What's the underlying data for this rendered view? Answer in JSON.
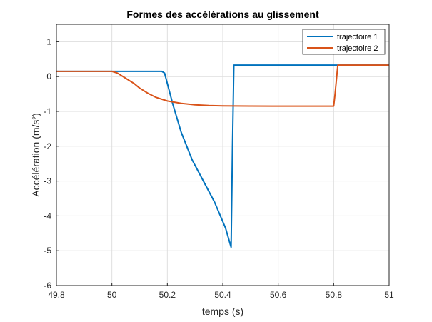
{
  "chart_data": {
    "type": "line",
    "title": "Formes des accélérations au glissement",
    "xlabel": "temps (s)",
    "ylabel": "Accélération (m/s²)",
    "xlim": [
      49.8,
      51
    ],
    "ylim": [
      -6,
      1.5
    ],
    "xticks": [
      49.8,
      50,
      50.2,
      50.4,
      50.6,
      50.8,
      51
    ],
    "xtick_labels": [
      "49.8",
      "50",
      "50.2",
      "50.4",
      "50.6",
      "50.8",
      "51"
    ],
    "yticks": [
      -6,
      -5,
      -4,
      -3,
      -2,
      -1,
      0,
      1
    ],
    "ytick_labels": [
      "-6",
      "-5",
      "-4",
      "-3",
      "-2",
      "-1",
      "0",
      "1"
    ],
    "grid": true,
    "legend_position": "top-right",
    "series": [
      {
        "name": "trajectoire 1",
        "color": "#0072BD",
        "x": [
          49.8,
          50.18,
          50.19,
          50.2,
          50.22,
          50.25,
          50.29,
          50.33,
          50.37,
          50.41,
          50.43,
          50.435,
          50.44,
          51.0
        ],
        "y": [
          0.15,
          0.15,
          0.1,
          -0.2,
          -0.8,
          -1.6,
          -2.4,
          -3.0,
          -3.6,
          -4.35,
          -4.9,
          -2.0,
          0.33,
          0.33
        ]
      },
      {
        "name": "trajectoire 2",
        "color": "#D95319",
        "x": [
          49.8,
          50.0,
          50.02,
          50.05,
          50.08,
          50.1,
          50.13,
          50.16,
          50.2,
          50.25,
          50.3,
          50.35,
          50.4,
          50.5,
          50.6,
          50.7,
          50.8,
          50.805,
          50.815,
          51.0
        ],
        "y": [
          0.15,
          0.15,
          0.1,
          -0.05,
          -0.2,
          -0.33,
          -0.48,
          -0.6,
          -0.7,
          -0.77,
          -0.81,
          -0.83,
          -0.84,
          -0.845,
          -0.85,
          -0.85,
          -0.85,
          -0.5,
          0.33,
          0.33
        ]
      }
    ]
  }
}
